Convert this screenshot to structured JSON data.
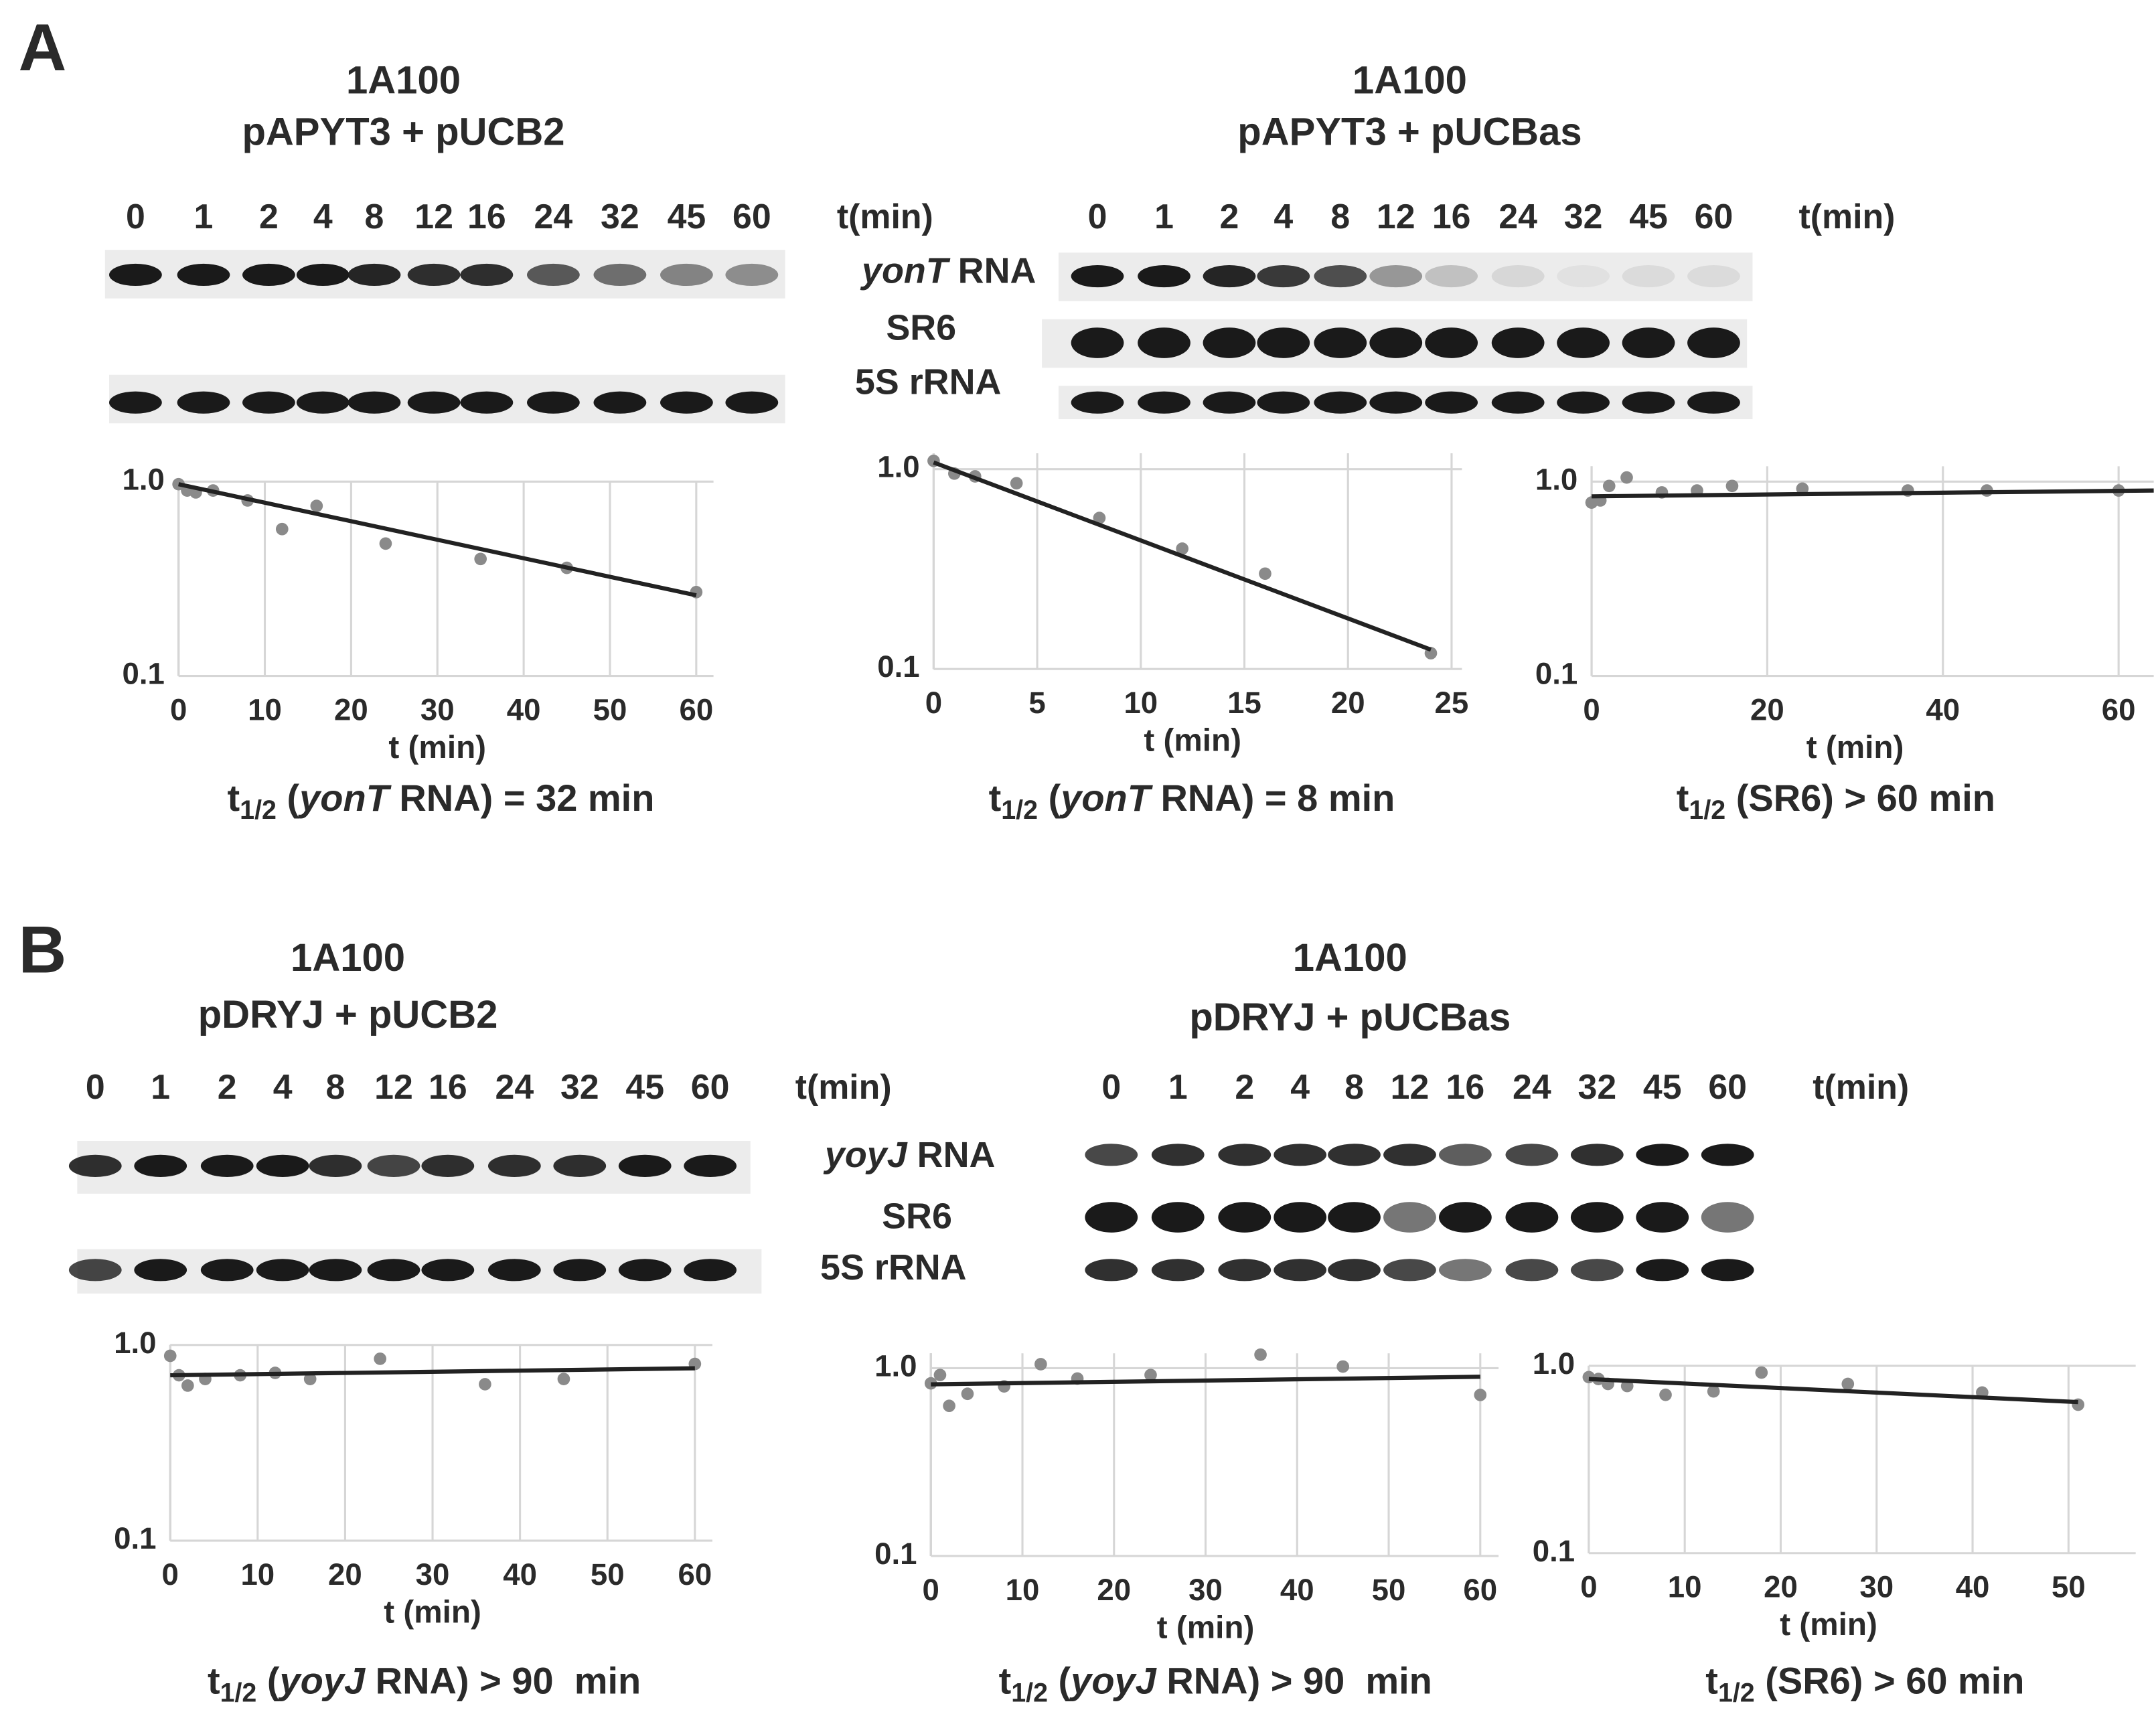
{
  "panel_labels": [
    "A",
    "B"
  ],
  "panels": [
    {
      "left": {
        "title": [
          "1A100",
          "pAPYT3 + pUCB2"
        ],
        "lanes": [
          "0",
          "1",
          "2",
          "4",
          "8",
          "12",
          "16",
          "24",
          "32",
          "45",
          "60"
        ],
        "time_label": "t(min)"
      },
      "right": {
        "title": [
          "1A100",
          "pAPYT3 + pUCBas"
        ],
        "lanes": [
          "0",
          "1",
          "2",
          "4",
          "8",
          "12",
          "16",
          "24",
          "32",
          "45",
          "60"
        ],
        "time_label": "t(min)"
      },
      "rows": [
        {
          "italic": "yonT",
          "text": " RNA"
        },
        "SR6",
        "5S rRNA"
      ]
    },
    {
      "left": {
        "title": [
          "1A100",
          "pDRYJ + pUCB2"
        ],
        "lanes": [
          "0",
          "1",
          "2",
          "4",
          "8",
          "12",
          "16",
          "24",
          "32",
          "45",
          "60"
        ],
        "time_label": "t(min)"
      },
      "right": {
        "title": [
          "1A100",
          "pDRYJ + pUCBas"
        ],
        "lanes": [
          "0",
          "1",
          "2",
          "4",
          "8",
          "12",
          "16",
          "24",
          "32",
          "45",
          "60"
        ],
        "time_label": "t(min)"
      },
      "rows": [
        {
          "italic": "yoyJ",
          "text": " RNA"
        },
        "SR6",
        "5S rRNA"
      ]
    }
  ],
  "chart_data": [
    {
      "type": "scatter",
      "xlabel": "t (min)",
      "log_y": true,
      "grid": true,
      "color": "#8a8a8a",
      "fit_color": "#222222",
      "x": [
        0,
        1,
        2,
        4,
        8,
        12,
        16,
        24,
        35,
        45,
        60
      ],
      "values": [
        0.97,
        0.9,
        0.88,
        0.9,
        0.8,
        0.57,
        0.75,
        0.48,
        0.4,
        0.36,
        0.27
      ],
      "fit": {
        "x": [
          0,
          60
        ],
        "values": [
          0.97,
          0.26
        ]
      },
      "xlim": [
        0,
        62
      ],
      "ylim": [
        0.1,
        1
      ],
      "xticks": [
        0,
        10,
        20,
        30,
        40,
        50,
        60
      ],
      "yticks": [
        0.1,
        {
          "value": 1,
          "label": "1.0"
        }
      ],
      "caption": [
        {
          "text": "t"
        },
        {
          "text": "1/2",
          "style": "sub"
        },
        {
          "text": " ("
        },
        {
          "text": "yonT",
          "style": "italic"
        },
        {
          "text": " RNA) = 32 min"
        }
      ]
    },
    {
      "type": "scatter",
      "xlabel": "t (min)",
      "log_y": true,
      "grid": true,
      "color": "#8a8a8a",
      "fit_color": "#222222",
      "x": [
        0,
        1,
        2,
        4,
        8,
        12,
        16,
        24
      ],
      "values": [
        1.1,
        0.95,
        0.92,
        0.85,
        0.57,
        0.4,
        0.3,
        0.12
      ],
      "fit": {
        "x": [
          0,
          24
        ],
        "values": [
          1.08,
          0.125
        ]
      },
      "xlim": [
        0,
        25.5
      ],
      "ylim": [
        0.1,
        1.2
      ],
      "xticks": [
        0,
        5,
        10,
        15,
        20,
        25
      ],
      "yticks": [
        0.1,
        {
          "value": 1,
          "label": "1.0"
        }
      ],
      "caption": [
        {
          "text": "t"
        },
        {
          "text": "1/2",
          "style": "sub"
        },
        {
          "text": " ("
        },
        {
          "text": "yonT",
          "style": "italic"
        },
        {
          "text": " RNA) = 8 min"
        }
      ]
    },
    {
      "type": "scatter",
      "xlabel": "t (min)",
      "log_y": true,
      "grid": true,
      "color": "#8a8a8a",
      "fit_color": "#222222",
      "x": [
        0,
        1,
        2,
        4,
        8,
        12,
        16,
        24,
        36,
        45,
        60
      ],
      "values": [
        0.78,
        0.8,
        0.95,
        1.05,
        0.88,
        0.9,
        0.95,
        0.92,
        0.9,
        0.9,
        0.9
      ],
      "fit": {
        "x": [
          0,
          64
        ],
        "values": [
          0.84,
          0.9
        ]
      },
      "xlim": [
        0,
        64
      ],
      "ylim": [
        0.1,
        1.2
      ],
      "xticks": [
        0,
        20,
        40,
        60
      ],
      "yticks": [
        0.1,
        {
          "value": 1,
          "label": "1.0"
        }
      ],
      "caption": [
        {
          "text": "t"
        },
        {
          "text": "1/2",
          "style": "sub"
        },
        {
          "text": " (SR6) > 60 min"
        }
      ]
    },
    {
      "type": "scatter",
      "xlabel": "t (min)",
      "log_y": true,
      "grid": true,
      "color": "#8a8a8a",
      "fit_color": "#222222",
      "x": [
        0,
        1,
        2,
        4,
        8,
        12,
        16,
        24,
        36,
        45,
        60
      ],
      "values": [
        0.88,
        0.7,
        0.62,
        0.67,
        0.7,
        0.72,
        0.67,
        0.85,
        0.63,
        0.67,
        0.8
      ],
      "fit": {
        "x": [
          0,
          60
        ],
        "values": [
          0.7,
          0.76
        ]
      },
      "xlim": [
        0,
        62
      ],
      "ylim": [
        0.1,
        1
      ],
      "xticks": [
        0,
        10,
        20,
        30,
        40,
        50,
        60
      ],
      "yticks": [
        0.1,
        {
          "value": 1,
          "label": "1.0"
        }
      ],
      "caption": [
        {
          "text": "t"
        },
        {
          "text": "1/2",
          "style": "sub"
        },
        {
          "text": " ("
        },
        {
          "text": "yoyJ",
          "style": "italic"
        },
        {
          "text": " RNA) > 90  min"
        }
      ]
    },
    {
      "type": "scatter",
      "xlabel": "t (min)",
      "log_y": true,
      "grid": true,
      "color": "#8a8a8a",
      "fit_color": "#222222",
      "x": [
        0,
        1,
        2,
        4,
        8,
        12,
        16,
        24,
        36,
        45,
        60
      ],
      "values": [
        0.83,
        0.92,
        0.63,
        0.73,
        0.8,
        1.05,
        0.88,
        0.92,
        1.18,
        1.02,
        0.72
      ],
      "fit": {
        "x": [
          0,
          60
        ],
        "values": [
          0.82,
          0.9
        ]
      },
      "xlim": [
        0,
        62
      ],
      "ylim": [
        0.1,
        1.2
      ],
      "xticks": [
        0,
        10,
        20,
        30,
        40,
        50,
        60
      ],
      "yticks": [
        0.1,
        {
          "value": 1,
          "label": "1.0"
        }
      ],
      "caption": [
        {
          "text": "t"
        },
        {
          "text": "1/2",
          "style": "sub"
        },
        {
          "text": " ("
        },
        {
          "text": "yoyJ",
          "style": "italic"
        },
        {
          "text": " RNA) > 90  min"
        }
      ]
    },
    {
      "type": "scatter",
      "xlabel": "t (min)",
      "log_y": true,
      "grid": true,
      "color": "#8a8a8a",
      "fit_color": "#222222",
      "x": [
        0,
        1,
        2,
        4,
        8,
        13,
        18,
        27,
        41,
        51
      ],
      "values": [
        0.87,
        0.85,
        0.8,
        0.78,
        0.7,
        0.73,
        0.92,
        0.8,
        0.72,
        0.62
      ],
      "fit": {
        "x": [
          0,
          51
        ],
        "values": [
          0.85,
          0.64
        ]
      },
      "xlim": [
        0,
        57
      ],
      "ylim": [
        0.1,
        1
      ],
      "xticks": [
        0,
        10,
        20,
        30,
        40,
        50
      ],
      "yticks": [
        0.1,
        {
          "value": 1,
          "label": "1.0"
        }
      ],
      "caption": [
        {
          "text": "t"
        },
        {
          "text": "1/2",
          "style": "sub"
        },
        {
          "text": " (SR6) > 60 min"
        }
      ]
    }
  ]
}
